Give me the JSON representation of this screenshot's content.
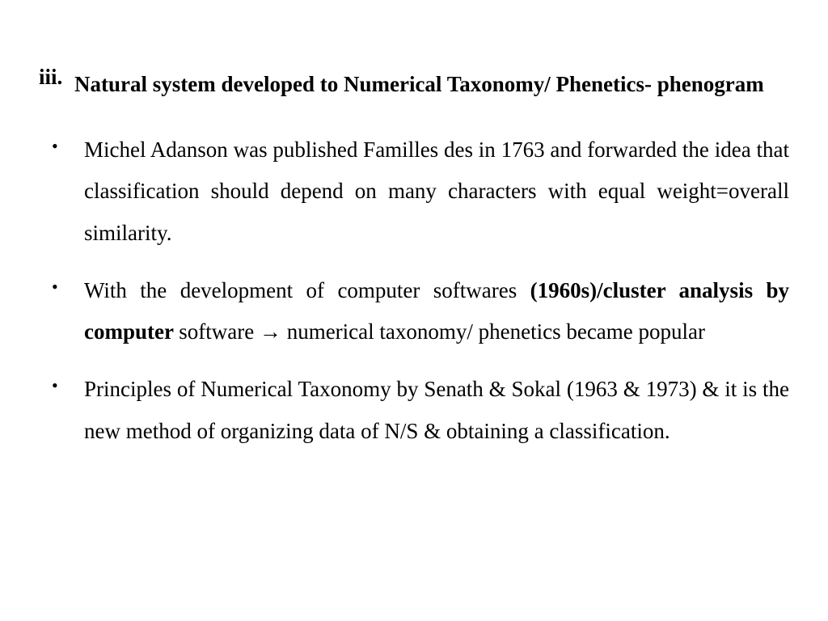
{
  "heading": {
    "marker": "iii.",
    "text": "Natural system developed to Numerical Taxonomy/ Phenetics- phenogram"
  },
  "bullets": [
    {
      "parts": [
        {
          "text": "Michel Adanson was published Familles des in 1763 and forwarded the idea that classification should depend on many characters with equal weight=overall similarity.",
          "bold": false
        }
      ]
    },
    {
      "parts": [
        {
          "text": "With the development of computer softwares ",
          "bold": false
        },
        {
          "text": "(1960s)/cluster analysis by computer ",
          "bold": true
        },
        {
          "text": "software  → numerical taxonomy/ phenetics became  popular",
          "bold": false
        }
      ]
    },
    {
      "parts": [
        {
          "text": "Principles of Numerical Taxonomy by Senath & Sokal (1963 & 1973) & it is the new method of organizing data of N/S & obtaining a classification.",
          "bold": false
        }
      ]
    }
  ],
  "style": {
    "background_color": "#ffffff",
    "text_color": "#000000",
    "font_family": "Times New Roman",
    "heading_fontsize": 27,
    "body_fontsize": 27,
    "line_height": 1.9,
    "bullet_char": "•"
  }
}
